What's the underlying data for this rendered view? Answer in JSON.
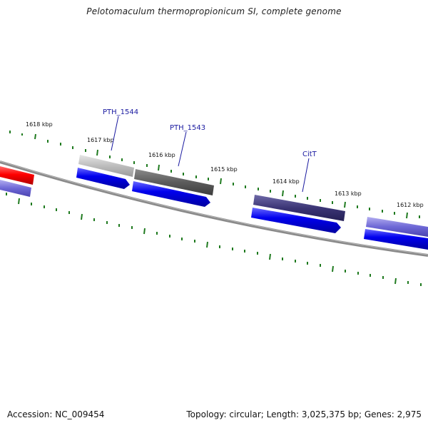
{
  "title": "Pelotomaculum thermopropionicum SI, complete genome",
  "accession": "Accession: NC_009454",
  "summary": "Topology: circular; Length: 3,025,375 bp; Genes: 2,975",
  "colors": {
    "backbone": "#8a8a8a",
    "tick": "#1f7a1f",
    "cds": "#0000ee",
    "label": "#1a1aa0"
  },
  "kbp_labels": [
    "1618 kbp",
    "1617 kbp",
    "1616 kbp",
    "1615 kbp",
    "1614 kbp",
    "1613 kbp",
    "1612 kbp"
  ],
  "gene_labels": [
    "PTH_1544",
    "PTH_1543",
    "CitT"
  ]
}
